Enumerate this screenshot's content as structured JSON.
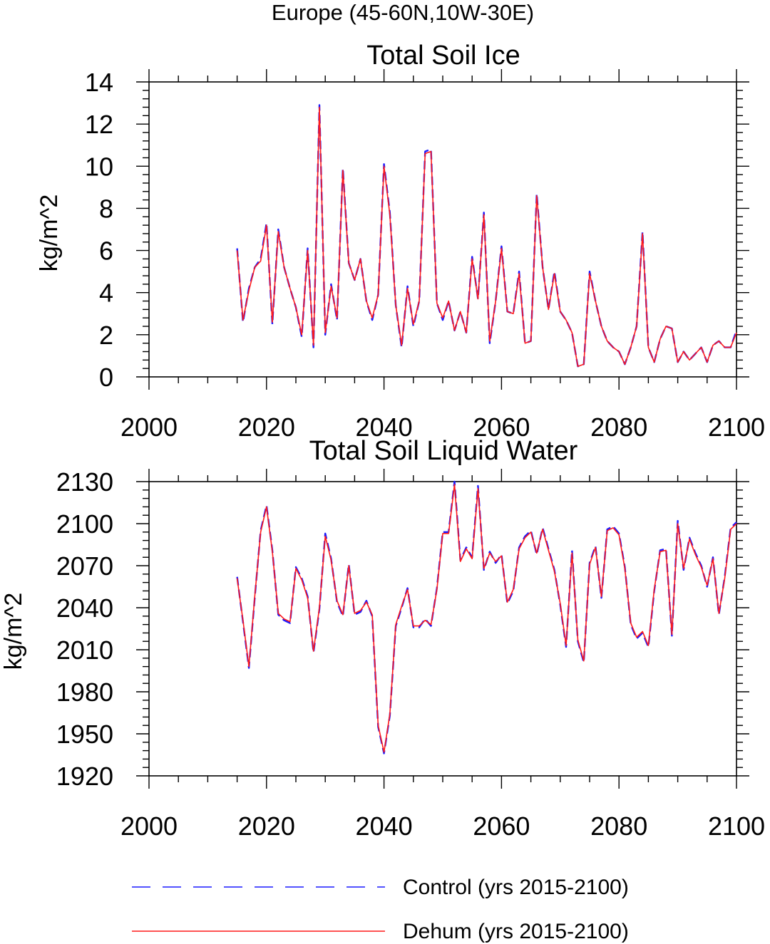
{
  "figure_title": "Europe (45-60N,10W-30E)",
  "legend": {
    "control_label": "Control (yrs 2015-2100)",
    "dehum_label": "Dehum (yrs 2015-2100)"
  },
  "colors": {
    "control": "#1a1aff",
    "dehum": "#ff1a1a",
    "axis": "#000000"
  },
  "chart_data": [
    {
      "type": "line",
      "title": "Total Soil Ice",
      "xlabel": "",
      "ylabel": "kg/m^2",
      "xlim": [
        2000,
        2100
      ],
      "ylim": [
        0,
        14
      ],
      "x_ticks": [
        2000,
        2020,
        2040,
        2060,
        2080,
        2100
      ],
      "y_ticks": [
        0,
        2,
        4,
        6,
        8,
        10,
        12,
        14
      ],
      "x_start": 2015,
      "series": [
        {
          "name": "Control (yrs 2015-2100)",
          "style": "dashed",
          "values": [
            6.1,
            2.6,
            4.2,
            5.2,
            5.6,
            7.3,
            2.5,
            7.0,
            5.2,
            4.2,
            3.3,
            1.9,
            6.1,
            1.4,
            12.9,
            2.0,
            4.4,
            2.7,
            9.9,
            5.4,
            4.6,
            5.6,
            3.6,
            2.7,
            3.9,
            10.1,
            7.8,
            3.4,
            1.4,
            4.3,
            2.4,
            3.6,
            10.7,
            10.8,
            3.5,
            2.7,
            3.6,
            2.2,
            3.1,
            2.1,
            5.7,
            3.7,
            7.8,
            1.6,
            3.6,
            6.2,
            3.1,
            3.0,
            5.0,
            1.6,
            1.7,
            8.7,
            5.2,
            3.2,
            5.0,
            3.1,
            2.7,
            2.1,
            0.5,
            0.6,
            5.0,
            3.6,
            2.4,
            1.7,
            1.4,
            1.2,
            0.6,
            1.4,
            2.4,
            6.9,
            1.4,
            0.7,
            1.8,
            2.4,
            2.3,
            0.7,
            1.2,
            0.8,
            1.1,
            1.4,
            0.7,
            1.5,
            1.7,
            1.4,
            1.4,
            2.2
          ]
        },
        {
          "name": "Dehum (yrs 2015-2100)",
          "style": "solid",
          "values": [
            6.0,
            2.7,
            4.1,
            5.2,
            5.5,
            7.2,
            2.6,
            6.9,
            5.2,
            4.2,
            3.3,
            2.0,
            6.0,
            1.5,
            12.8,
            2.1,
            4.3,
            2.8,
            9.8,
            5.4,
            4.6,
            5.6,
            3.6,
            2.8,
            3.9,
            10.0,
            7.7,
            3.4,
            1.5,
            4.2,
            2.5,
            3.6,
            10.6,
            10.7,
            3.5,
            2.8,
            3.6,
            2.2,
            3.1,
            2.1,
            5.6,
            3.7,
            7.7,
            1.7,
            3.6,
            6.1,
            3.1,
            3.0,
            4.9,
            1.6,
            1.7,
            8.6,
            5.2,
            3.2,
            4.9,
            3.1,
            2.7,
            2.1,
            0.5,
            0.6,
            4.9,
            3.6,
            2.4,
            1.7,
            1.4,
            1.2,
            0.6,
            1.4,
            2.4,
            6.8,
            1.4,
            0.7,
            1.8,
            2.4,
            2.3,
            0.7,
            1.2,
            0.8,
            1.1,
            1.4,
            0.7,
            1.5,
            1.7,
            1.4,
            1.4,
            2.1
          ]
        }
      ]
    },
    {
      "type": "line",
      "title": "Total Soil Liquid Water",
      "xlabel": "",
      "ylabel": "kg/m^2",
      "xlim": [
        2000,
        2100
      ],
      "ylim": [
        1920,
        2130
      ],
      "x_ticks": [
        2000,
        2020,
        2040,
        2060,
        2080,
        2100
      ],
      "y_ticks": [
        1920,
        1950,
        1980,
        2010,
        2040,
        2070,
        2100,
        2130
      ],
      "x_start": 2015,
      "series": [
        {
          "name": "Control (yrs 2015-2100)",
          "style": "dashed",
          "values": [
            2062,
            2030,
            1997,
            2047,
            2095,
            2113,
            2081,
            2035,
            2031,
            2029,
            2069,
            2061,
            2048,
            2008,
            2039,
            2093,
            2075,
            2044,
            2034,
            2071,
            2035,
            2037,
            2045,
            2034,
            1955,
            1936,
            1963,
            2027,
            2040,
            2054,
            2026,
            2026,
            2032,
            2027,
            2054,
            2094,
            2094,
            2130,
            2074,
            2083,
            2076,
            2127,
            2067,
            2080,
            2072,
            2078,
            2043,
            2052,
            2083,
            2091,
            2095,
            2078,
            2097,
            2082,
            2067,
            2042,
            2012,
            2081,
            2016,
            2001,
            2072,
            2084,
            2047,
            2096,
            2098,
            2093,
            2069,
            2028,
            2018,
            2022,
            2012,
            2052,
            2081,
            2082,
            2020,
            2102,
            2067,
            2090,
            2079,
            2070,
            2055,
            2076,
            2035,
            2062,
            2097,
            2101
          ]
        },
        {
          "name": "Dehum (yrs 2015-2100)",
          "style": "solid",
          "values": [
            2061,
            2031,
            1998,
            2048,
            2094,
            2112,
            2080,
            2036,
            2032,
            2030,
            2068,
            2060,
            2047,
            2009,
            2040,
            2091,
            2074,
            2045,
            2035,
            2070,
            2036,
            2038,
            2044,
            2035,
            1956,
            1937,
            1964,
            2028,
            2041,
            2053,
            2027,
            2027,
            2031,
            2028,
            2053,
            2093,
            2093,
            2128,
            2073,
            2082,
            2075,
            2125,
            2068,
            2079,
            2073,
            2077,
            2044,
            2053,
            2082,
            2090,
            2094,
            2079,
            2096,
            2081,
            2066,
            2043,
            2013,
            2079,
            2017,
            2002,
            2071,
            2083,
            2048,
            2095,
            2097,
            2092,
            2068,
            2029,
            2019,
            2023,
            2013,
            2053,
            2080,
            2081,
            2021,
            2100,
            2068,
            2089,
            2078,
            2069,
            2056,
            2075,
            2036,
            2061,
            2096,
            2100
          ]
        }
      ]
    }
  ]
}
